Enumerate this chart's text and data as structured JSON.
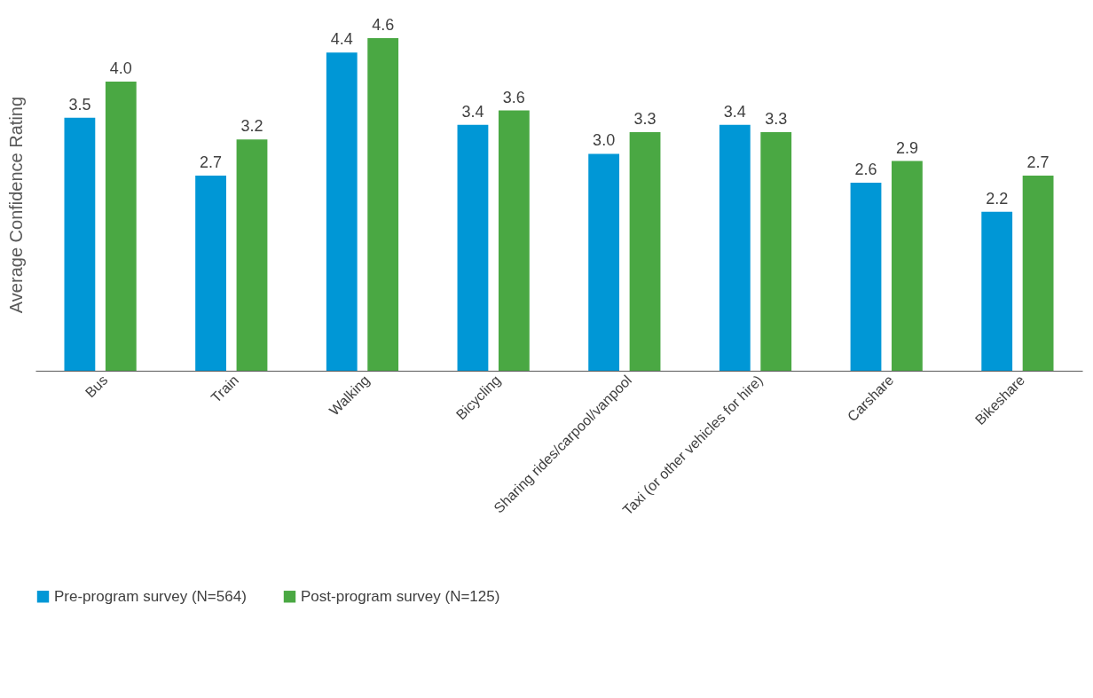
{
  "chart_data": {
    "type": "bar",
    "ylabel": "Average Confidence  Rating",
    "categories": [
      "Bus",
      "Train",
      "Walking",
      "Bicycling",
      "Sharing rides/carpool/vanpool",
      "Taxi (or other vehicles for hire)",
      "Carshare",
      "Bikeshare"
    ],
    "series": [
      {
        "name": "Pre-program survey (N=564)",
        "color": "#0097d6",
        "values": [
          3.5,
          2.7,
          4.4,
          3.4,
          3.0,
          3.4,
          2.6,
          2.2
        ],
        "value_labels": [
          "3.5",
          "2.7",
          "4.4",
          "3.4",
          "3.0",
          "3.4",
          "2.6",
          "2.2"
        ]
      },
      {
        "name": "Post-program survey (N=125)",
        "color": "#4aa843",
        "values": [
          4.0,
          3.2,
          4.6,
          3.6,
          3.3,
          3.3,
          2.9,
          2.7
        ],
        "value_labels": [
          "4.0",
          "3.2",
          "4.6",
          "3.6",
          "3.3",
          "3.3",
          "2.9",
          "2.7"
        ]
      }
    ],
    "tick_labels": "x",
    "grid": false,
    "legend": "bottom"
  }
}
